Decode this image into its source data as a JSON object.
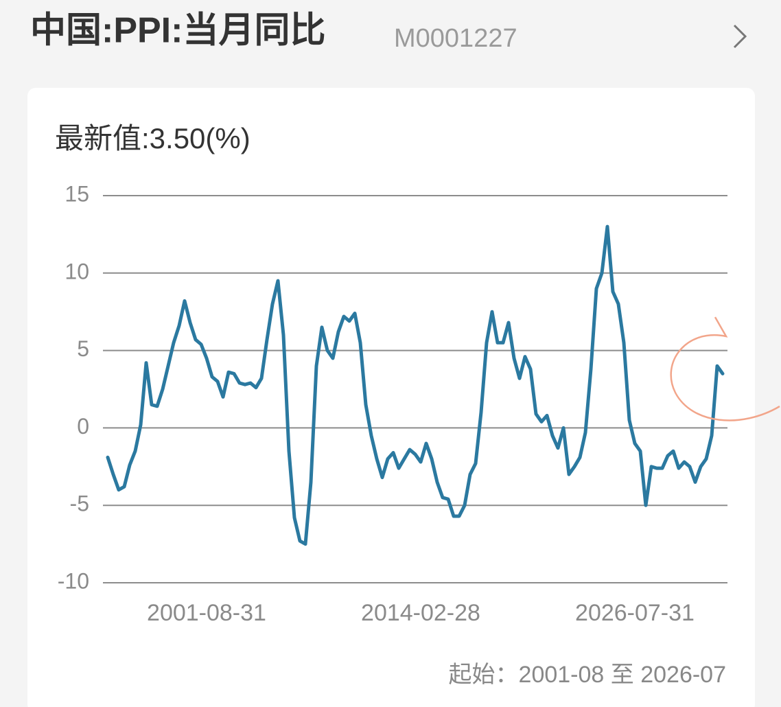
{
  "chart_data": {
    "type": "line",
    "title": "中国:PPI:当月同比",
    "subtitle": "M0001227",
    "latest_label": "最新值:3.50(%)",
    "footer": "起始：2001-08 至 2026-07",
    "color": "#2b79a0",
    "grid": true,
    "ylim": [
      -10,
      15
    ],
    "yticks": [
      -10,
      -5,
      0,
      5,
      10,
      15
    ],
    "categories": [
      null,
      null,
      null,
      null,
      null,
      null,
      null,
      null,
      null,
      null,
      null,
      null,
      null,
      null,
      null,
      null,
      null,
      null,
      "2001-08-31",
      null,
      null,
      null,
      null,
      null,
      null,
      null,
      null,
      null,
      null,
      null,
      null,
      null,
      null,
      null,
      null,
      null,
      null,
      null,
      null,
      null,
      null,
      null,
      null,
      null,
      null,
      null,
      null,
      null,
      null,
      null,
      null,
      null,
      null,
      null,
      null,
      null,
      null,
      "2014-02-28",
      null,
      null,
      null,
      null,
      null,
      null,
      null,
      null,
      null,
      null,
      null,
      null,
      null,
      null,
      null,
      null,
      null,
      null,
      null,
      null,
      null,
      null,
      null,
      null,
      null,
      null,
      null,
      null,
      null,
      null,
      null,
      null,
      null,
      null,
      null,
      null,
      null,
      null,
      "2026-07-31",
      null,
      null,
      null,
      null,
      null,
      null,
      null,
      null,
      null,
      null,
      null,
      null,
      null,
      null,
      null,
      null
    ],
    "values": [
      -1.9,
      -3.0,
      -4.0,
      -3.8,
      -2.4,
      -1.5,
      0.2,
      4.2,
      1.5,
      1.4,
      2.5,
      4.0,
      5.5,
      6.6,
      8.2,
      6.8,
      5.7,
      5.4,
      4.5,
      3.3,
      3.0,
      2.0,
      3.6,
      3.5,
      2.9,
      2.8,
      2.9,
      2.6,
      3.2,
      5.7,
      8.0,
      9.5,
      6.0,
      -1.5,
      -5.8,
      -7.3,
      -7.5,
      -3.5,
      4.0,
      6.5,
      5.0,
      4.5,
      6.2,
      7.2,
      6.9,
      7.4,
      5.5,
      1.5,
      -0.5,
      -2.0,
      -3.2,
      -2.0,
      -1.6,
      -2.6,
      -2.0,
      -1.4,
      -1.7,
      -2.2,
      -1.0,
      -2.0,
      -3.5,
      -4.5,
      -4.6,
      -5.7,
      -5.7,
      -5.0,
      -3.0,
      -2.3,
      1.0,
      5.5,
      7.5,
      5.5,
      5.5,
      6.8,
      4.5,
      3.2,
      4.6,
      3.8,
      0.9,
      0.4,
      0.8,
      -0.5,
      -1.3,
      0.0,
      -3.0,
      -2.5,
      -1.9,
      -0.3,
      3.8,
      9.0,
      10.0,
      13.0,
      8.8,
      8.0,
      5.5,
      0.5,
      -1.0,
      -1.5,
      -5.0,
      -2.5,
      -2.6,
      -2.6,
      -1.8,
      -1.5,
      -2.6,
      -2.2,
      -2.5,
      -3.5,
      -2.5,
      -2.0,
      -0.5,
      4.0,
      3.5
    ]
  }
}
